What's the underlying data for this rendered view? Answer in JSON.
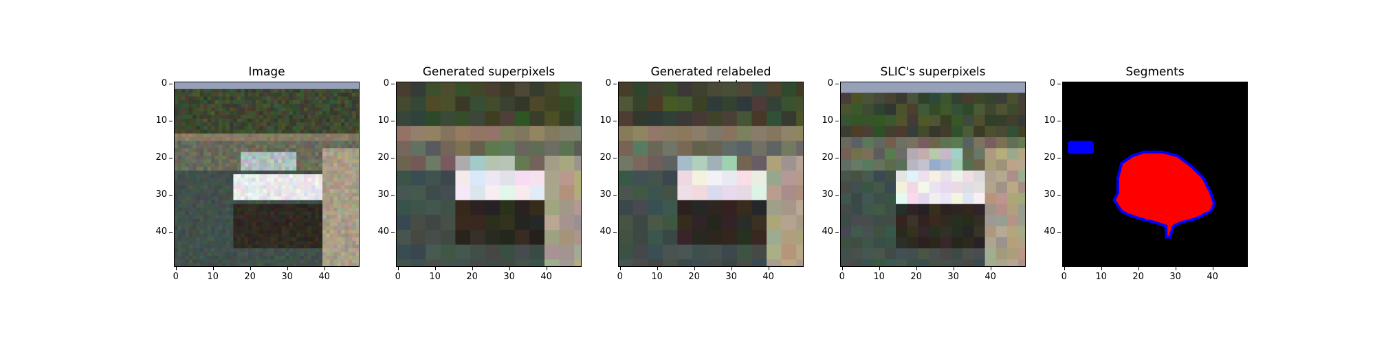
{
  "panels": [
    {
      "title": "Image"
    },
    {
      "title": "Generated superpixels"
    },
    {
      "title": "Generated relabeled superpixels"
    },
    {
      "title": "SLIC's superpixels"
    },
    {
      "title": "Segments"
    }
  ],
  "axes": {
    "yticks": [
      "0",
      "10",
      "20",
      "30",
      "40"
    ],
    "xticks": [
      "0",
      "10",
      "20",
      "30",
      "40"
    ],
    "extent": [
      0,
      50
    ]
  },
  "colors": {
    "segment_fill": "#ff0000",
    "segment_border": "#0000ff",
    "background": "#000000"
  }
}
